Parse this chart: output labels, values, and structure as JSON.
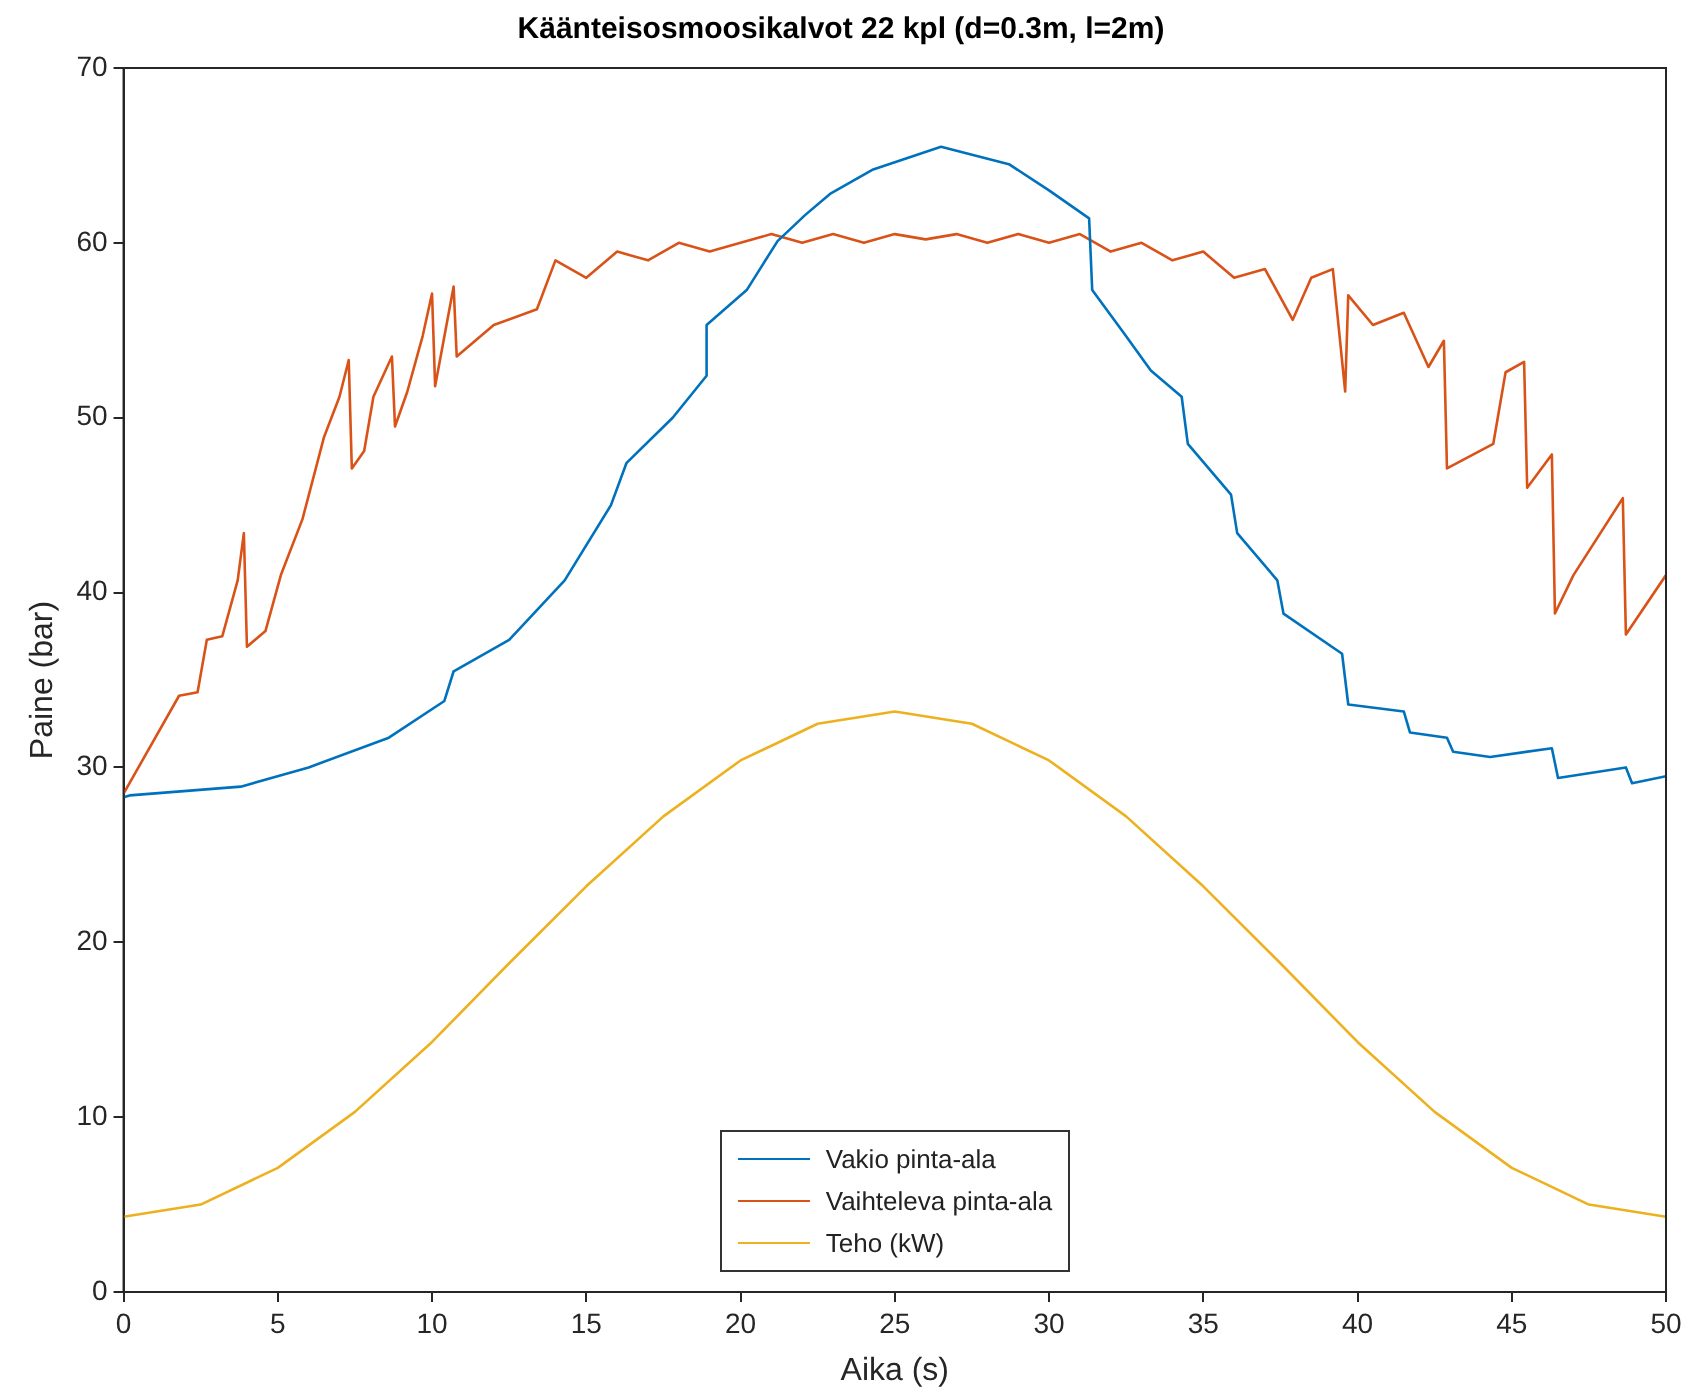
{
  "chart_data": {
    "type": "line",
    "title": "Käänteisosmoosikalvot 22 kpl (d=0.3m, l=2m)",
    "xlabel": "Aika (s)",
    "ylabel": "Paine (bar)",
    "xlim": [
      0,
      50
    ],
    "xticks": [
      0,
      5,
      10,
      15,
      20,
      25,
      30,
      35,
      40,
      45,
      50
    ],
    "ylim": [
      0,
      70
    ],
    "yticks": [
      0,
      10,
      20,
      30,
      40,
      50,
      60,
      70
    ],
    "grid": false,
    "legend": "bottom",
    "marker": "none",
    "line_style": "solid",
    "series": [
      {
        "name": "Vakio pinta-ala",
        "color": "#0072bd",
        "x": [
          0,
          0.2,
          3.8,
          6,
          8.6,
          10.4,
          10.7,
          12.5,
          14.3,
          15.8,
          16.3,
          17.8,
          18.9,
          18.9,
          20.2,
          21.2,
          22.1,
          22.9,
          24.3,
          26.5,
          28.7,
          30,
          31.3,
          31.4,
          32.4,
          33.3,
          34.3,
          34.5,
          35.9,
          36.1,
          37.4,
          37.6,
          39.5,
          39.7,
          41.5,
          41.7,
          42.9,
          43.1,
          44.3,
          46.3,
          46.5,
          48.7,
          48.9,
          50
        ],
        "values": [
          28.3,
          28.4,
          28.9,
          30,
          31.7,
          33.8,
          35.5,
          37.3,
          40.7,
          45,
          47.4,
          50,
          52.4,
          55.3,
          57.3,
          60.1,
          61.6,
          62.8,
          64.2,
          65.5,
          64.5,
          63,
          61.4,
          57.3,
          54.9,
          52.7,
          51.2,
          48.5,
          45.6,
          43.4,
          40.7,
          38.8,
          36.5,
          33.6,
          33.2,
          32,
          31.7,
          30.9,
          30.6,
          31.1,
          29.4,
          30,
          29.1,
          29.5
        ]
      },
      {
        "name": "Vaihteleva pinta-ala",
        "color": "#d95319",
        "x": [
          0,
          1.8,
          2.4,
          2.7,
          3.2,
          3.7,
          3.9,
          4.0,
          4.6,
          5.1,
          5.8,
          6.5,
          7.0,
          7.3,
          7.4,
          7.8,
          8.1,
          8.7,
          8.8,
          9.2,
          9.7,
          10.0,
          10.1,
          10.7,
          10.8,
          12.0,
          13.4,
          14,
          15,
          16,
          17,
          18,
          19,
          20,
          21,
          22,
          23,
          24,
          25,
          26,
          27,
          28,
          29,
          30,
          31,
          32,
          33,
          34,
          35,
          36,
          37,
          37.9,
          38.5,
          39.2,
          39.6,
          39.7,
          40.5,
          41.5,
          42.3,
          42.8,
          42.9,
          44.4,
          44.8,
          45.4,
          45.5,
          46.3,
          46.4,
          47.0,
          48.6,
          48.7,
          50
        ],
        "values": [
          28.5,
          34.1,
          34.3,
          37.3,
          37.5,
          40.7,
          43.4,
          36.9,
          37.8,
          41,
          44.2,
          48.9,
          51.2,
          53.3,
          47.1,
          48.1,
          51.2,
          53.5,
          49.5,
          51.5,
          54.7,
          57.1,
          51.8,
          57.5,
          53.5,
          55.3,
          56.2,
          59,
          58,
          59.5,
          59,
          60,
          59.5,
          60,
          60.5,
          60,
          60.5,
          60,
          60.5,
          60.2,
          60.5,
          60,
          60.5,
          60,
          60.5,
          59.5,
          60,
          59,
          59.5,
          58,
          58.5,
          55.6,
          58,
          58.5,
          51.5,
          57,
          55.3,
          56,
          52.9,
          54.4,
          47.1,
          48.5,
          52.6,
          53.2,
          46,
          47.9,
          38.8,
          41,
          45.4,
          37.6,
          41
        ]
      },
      {
        "name": "Teho (kW)",
        "color": "#edb120",
        "x": [
          0,
          2.5,
          5,
          7.5,
          10,
          12.5,
          15,
          17.5,
          20,
          22.5,
          25,
          27.5,
          30,
          32.5,
          35,
          37.5,
          40,
          42.5,
          45,
          47.5,
          50
        ],
        "values": [
          4.3,
          5.0,
          7.1,
          10.3,
          14.3,
          18.8,
          23.2,
          27.2,
          30.4,
          32.5,
          33.2,
          32.5,
          30.4,
          27.2,
          23.2,
          18.8,
          14.3,
          10.3,
          7.1,
          5.0,
          4.3
        ]
      }
    ]
  }
}
